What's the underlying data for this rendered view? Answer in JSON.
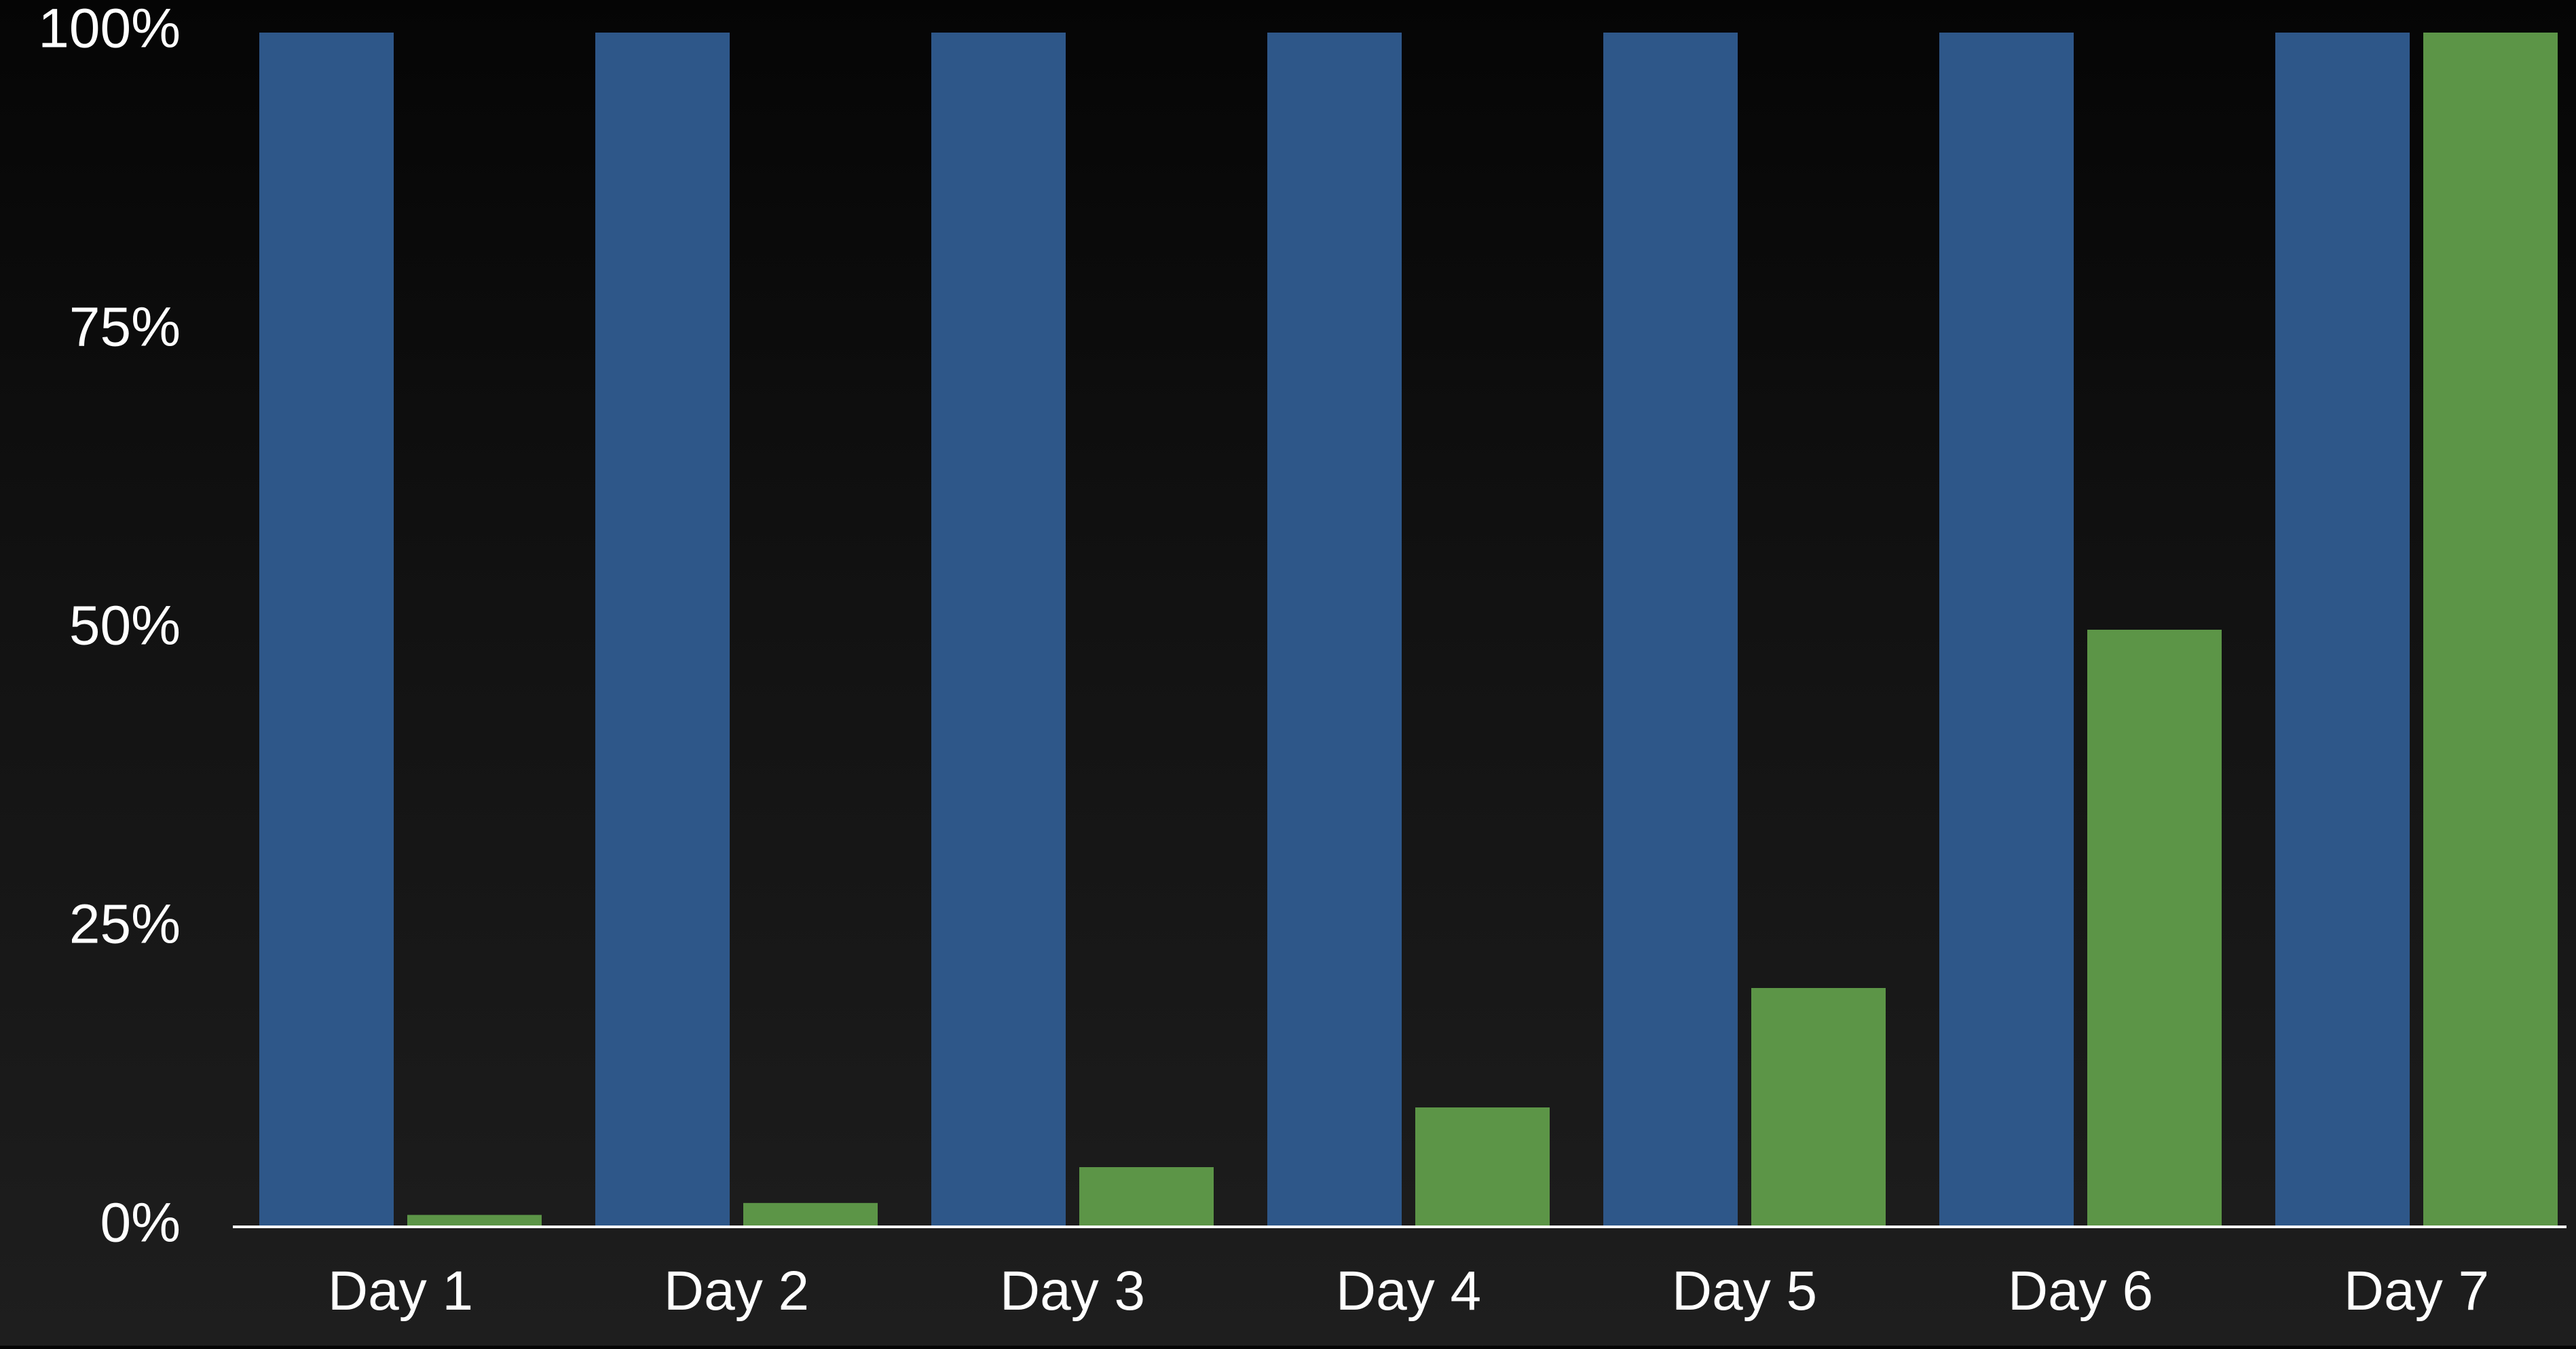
{
  "chart_data": {
    "type": "bar",
    "categories": [
      "Day 1",
      "Day 2",
      "Day 3",
      "Day 4",
      "Day 5",
      "Day 6",
      "Day 7"
    ],
    "series": [
      {
        "values": [
          100,
          100,
          100,
          100,
          100,
          100,
          100
        ],
        "color": "#2e5789"
      },
      {
        "values": [
          1,
          2,
          5,
          10,
          20,
          50,
          100
        ],
        "color": "#5c9547"
      }
    ],
    "ylim": [
      0,
      100
    ],
    "yticks": [
      0,
      25,
      50,
      75,
      100
    ],
    "ytick_labels": [
      "0%",
      "25%",
      "50%",
      "75%",
      "100%"
    ],
    "grid": false,
    "legend": "none",
    "background": "#121212",
    "axis_color": "#ffffff"
  }
}
